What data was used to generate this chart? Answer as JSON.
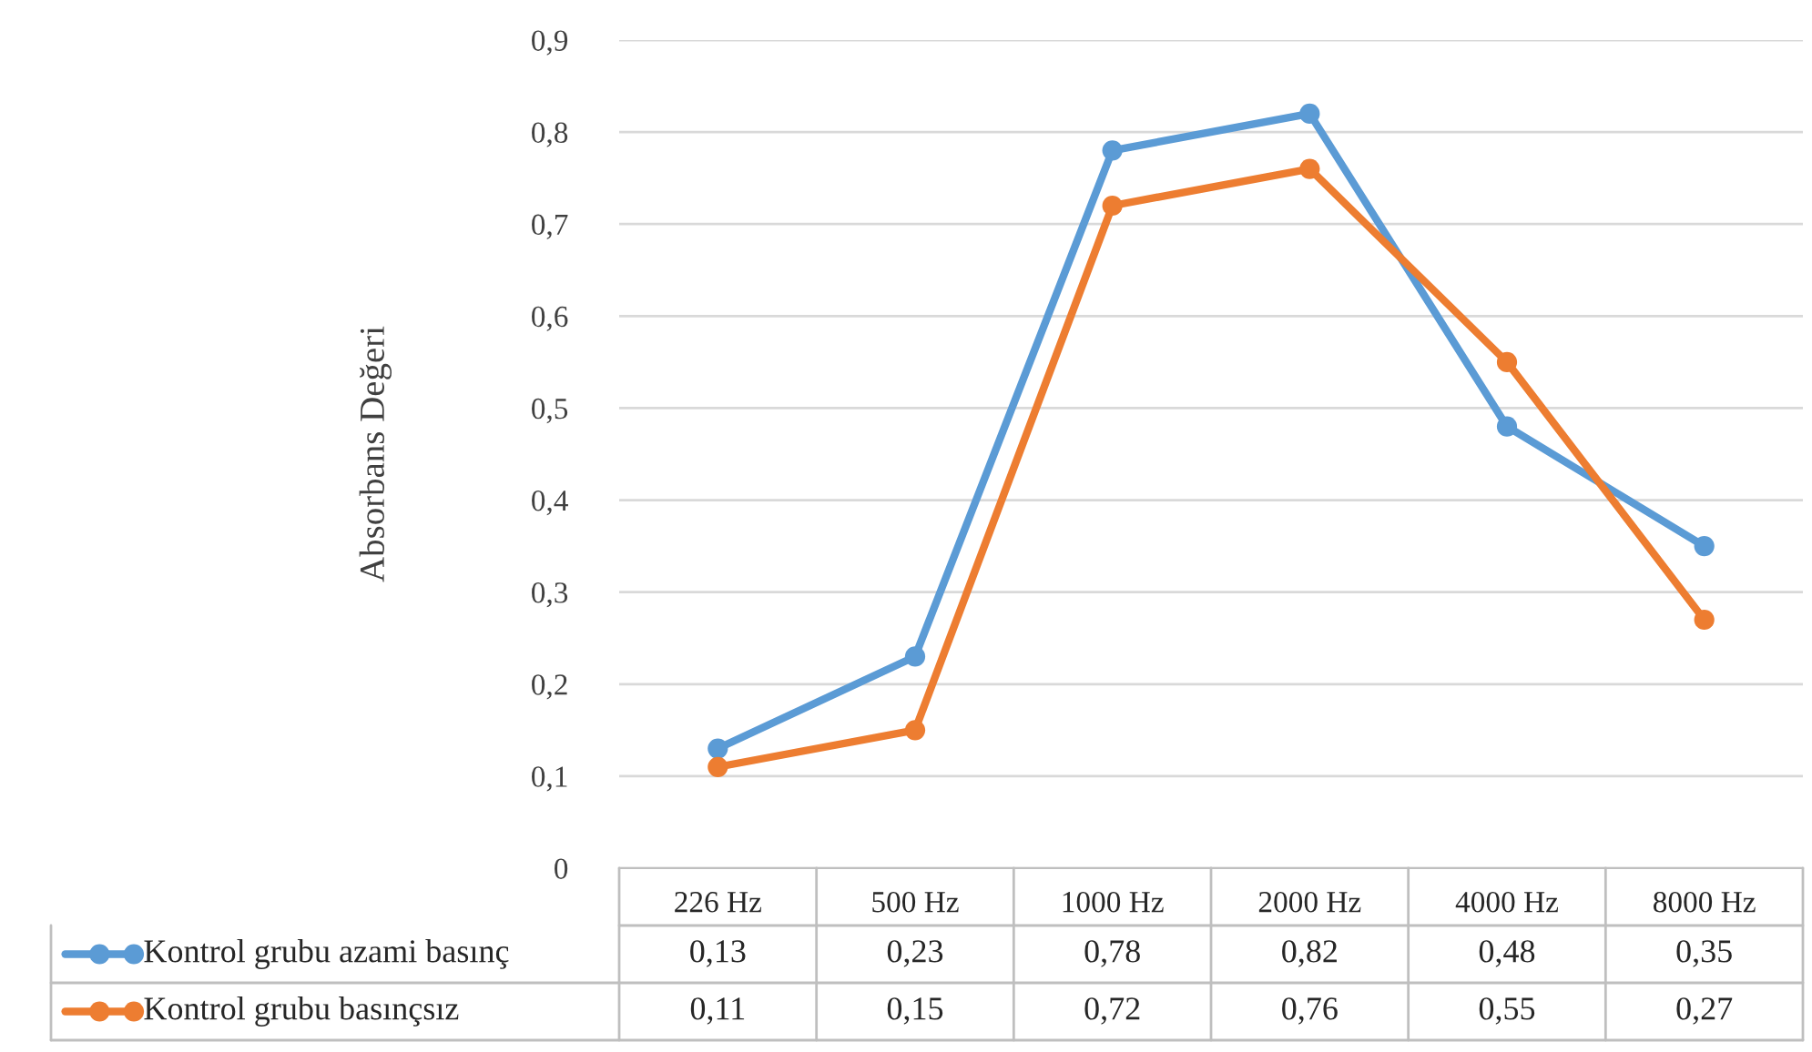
{
  "chart_data": {
    "type": "line",
    "ylabel": "Absorbans Değeri",
    "categories": [
      "226 Hz",
      "500 Hz",
      "1000 Hz",
      "2000 Hz",
      "4000 Hz",
      "8000 Hz"
    ],
    "series": [
      {
        "name": "Kontrol grubu azami basınç",
        "color": "#5b9bd5",
        "values": [
          0.13,
          0.23,
          0.78,
          0.82,
          0.48,
          0.35
        ],
        "value_labels": [
          "0,13",
          "0,23",
          "0,78",
          "0,82",
          "0,48",
          "0,35"
        ]
      },
      {
        "name": "Kontrol grubu basınçsız",
        "color": "#ed7d31",
        "values": [
          0.11,
          0.15,
          0.72,
          0.76,
          0.55,
          0.27
        ],
        "value_labels": [
          "0,11",
          "0,15",
          "0,72",
          "0,76",
          "0,55",
          "0,27"
        ]
      }
    ],
    "ylim": [
      0,
      0.9
    ],
    "yticks": [
      0,
      {
        "value": 0.1,
        "label": "0,1"
      },
      {
        "value": 0.2,
        "label": "0,2"
      },
      {
        "value": 0.3,
        "label": "0,3"
      },
      {
        "value": 0.4,
        "label": "0,4"
      },
      {
        "value": 0.5,
        "label": "0,5"
      },
      {
        "value": 0.6,
        "label": "0,6"
      },
      {
        "value": 0.7,
        "label": "0,7"
      },
      {
        "value": 0.8,
        "label": "0,8"
      },
      {
        "value": 0.9,
        "label": "0,9"
      }
    ],
    "grid": "y",
    "marker": "circle",
    "line_style": "solid",
    "legend": "bottom"
  }
}
